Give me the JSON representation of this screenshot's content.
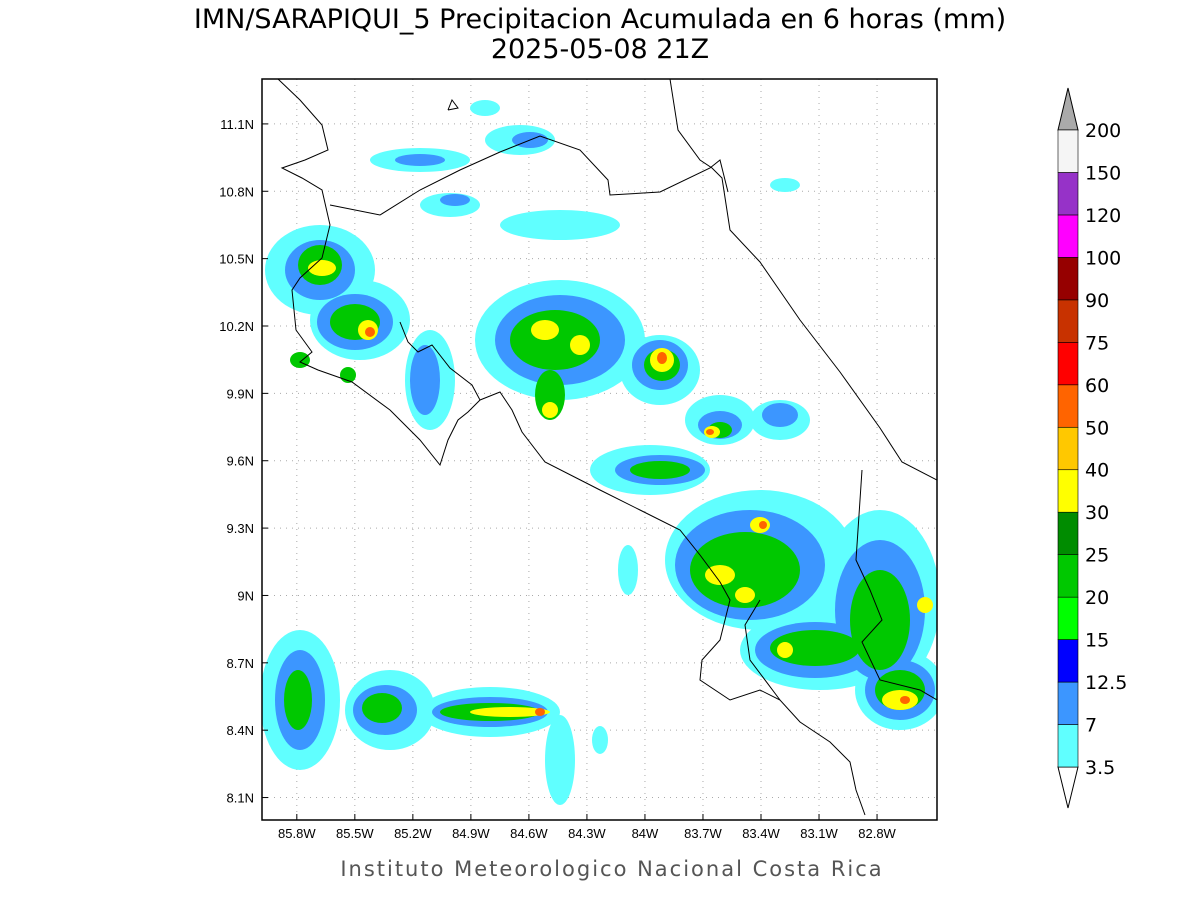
{
  "title": "IMN/SARAPIQUI_5 Precipitacion Acumulada en 6 horas (mm)",
  "subtitle": "2025-05-08 21Z",
  "footer": "Instituto Meteorologico Nacional Costa Rica",
  "map": {
    "xlim": [
      -85.98,
      -82.49
    ],
    "ylim": [
      8.0,
      11.3
    ],
    "grid": true,
    "xticks": [
      {
        "value": -85.8,
        "label": "85.8W"
      },
      {
        "value": -85.5,
        "label": "85.5W"
      },
      {
        "value": -85.2,
        "label": "85.2W"
      },
      {
        "value": -84.9,
        "label": "84.9W"
      },
      {
        "value": -84.6,
        "label": "84.6W"
      },
      {
        "value": -84.3,
        "label": "84.3W"
      },
      {
        "value": -84.0,
        "label": "84W"
      },
      {
        "value": -83.7,
        "label": "83.7W"
      },
      {
        "value": -83.4,
        "label": "83.4W"
      },
      {
        "value": -83.1,
        "label": "83.1W"
      },
      {
        "value": -82.8,
        "label": "82.8W"
      }
    ],
    "yticks": [
      {
        "value": 8.1,
        "label": "8.1N"
      },
      {
        "value": 8.4,
        "label": "8.4N"
      },
      {
        "value": 8.7,
        "label": "8.7N"
      },
      {
        "value": 9.0,
        "label": "9N"
      },
      {
        "value": 9.3,
        "label": "9.3N"
      },
      {
        "value": 9.6,
        "label": "9.6N"
      },
      {
        "value": 9.9,
        "label": "9.9N"
      },
      {
        "value": 10.2,
        "label": "10.2N"
      },
      {
        "value": 10.5,
        "label": "10.5N"
      },
      {
        "value": 10.8,
        "label": "10.8N"
      },
      {
        "value": 11.1,
        "label": "11.1N"
      }
    ]
  },
  "colorbar": {
    "levels": [
      3.5,
      7,
      12.5,
      15,
      20,
      25,
      30,
      40,
      50,
      60,
      75,
      90,
      100,
      120,
      150,
      200
    ],
    "colors": [
      "#60ffff",
      "#3c96ff",
      "#0000ff",
      "#00ff00",
      "#00c800",
      "#008c00",
      "#ffff00",
      "#ffc800",
      "#ff6400",
      "#ff0000",
      "#c83200",
      "#960000",
      "#ff00ff",
      "#9632c8",
      "#f5f5f5"
    ],
    "under_color": "#ffffff",
    "over_color": "#aaaaaa"
  }
}
